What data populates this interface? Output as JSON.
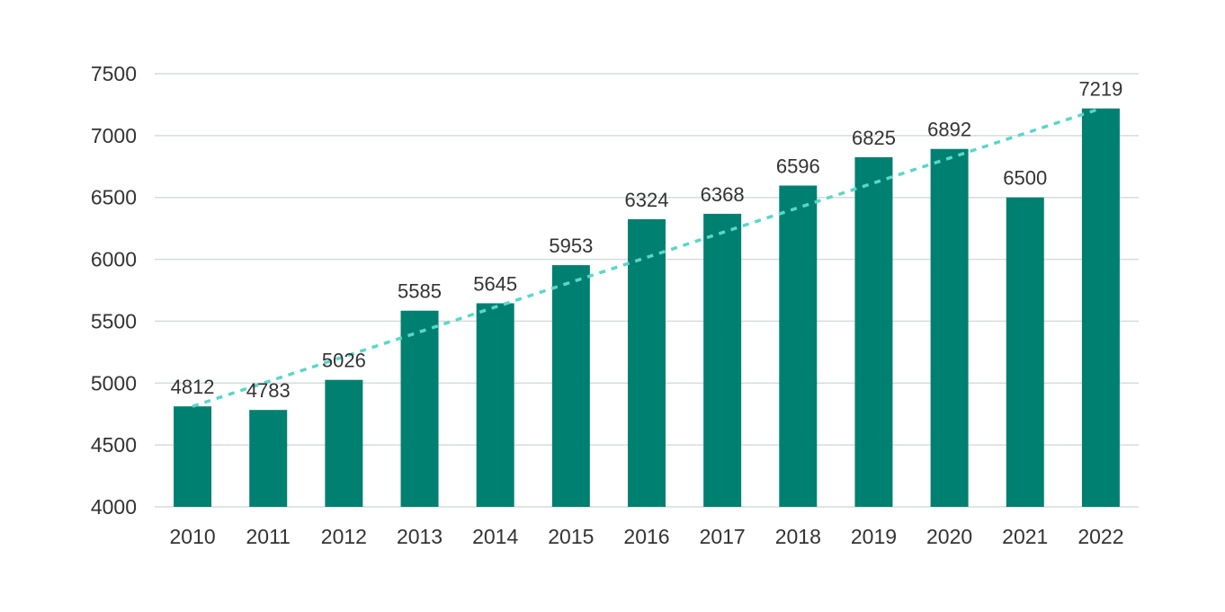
{
  "colors": {
    "bar": "#008070",
    "trendline": "#5bd6c8",
    "grid": "#d6dcdc",
    "text": "#333333"
  },
  "chart_data": {
    "type": "bar",
    "title": "",
    "xlabel": "",
    "ylabel": "",
    "categories": [
      "2010",
      "2011",
      "2012",
      "2013",
      "2014",
      "2015",
      "2016",
      "2017",
      "2018",
      "2019",
      "2020",
      "2021",
      "2022"
    ],
    "values": [
      4812,
      4783,
      5026,
      5585,
      5645,
      5953,
      6324,
      6368,
      6596,
      6825,
      6892,
      6500,
      7219
    ],
    "ylim": [
      4000,
      7500
    ],
    "yticks": [
      "4000",
      "4500",
      "5000",
      "5500",
      "6000",
      "6500",
      "7000",
      "7500"
    ],
    "grid": true,
    "data_labels": true,
    "trendline": {
      "type": "linear",
      "style": "dotted",
      "start_value": 4812,
      "end_value": 7219
    }
  }
}
